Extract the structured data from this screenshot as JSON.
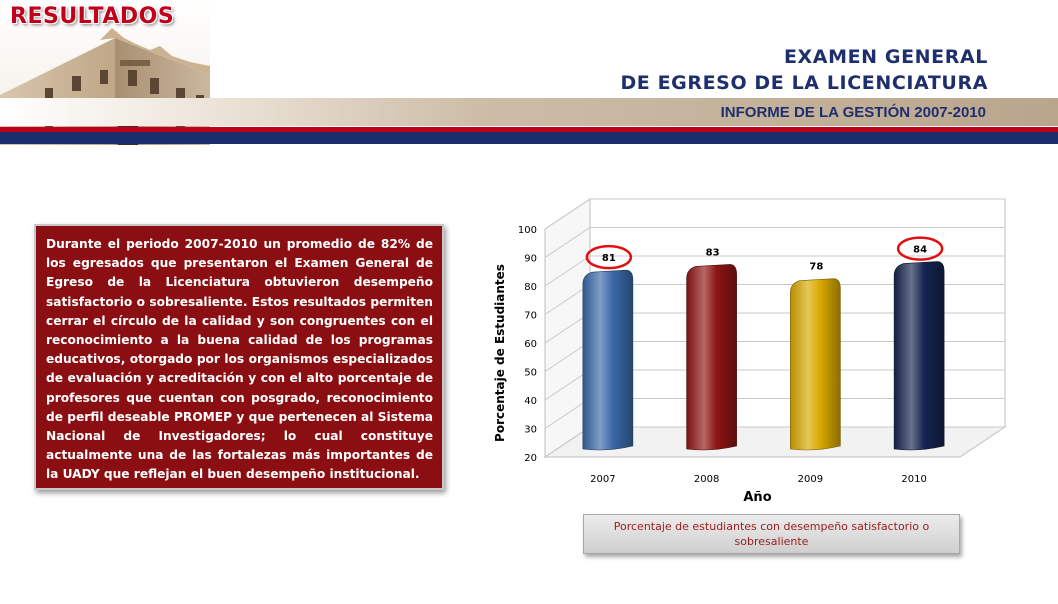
{
  "header": {
    "section_title": "RESULTADOS",
    "title_line1": "EXAMEN GENERAL",
    "title_line2": "DE EGRESO DE LA LICENCIATURA",
    "subtitle": "INFORME DE LA GESTIÓN 2007-2010"
  },
  "description": "Durante el periodo 2007-2010 un promedio de 82% de los egresados que presentaron el Examen General de Egreso de la Licenciatura obtuvieron desempeño satisfactorio o sobresaliente. Estos resultados permiten cerrar el círculo de la calidad y son congruentes con el reconocimiento a la buena calidad de los programas educativos, otorgado por los organismos especializados de evaluación y acreditación y con el alto porcentaje de profesores que cuentan con posgrado, reconocimiento de perfil deseable PROMEP y que pertenecen al Sistema Nacional de Investigadores; lo cual constituye actualmente una de las fortalezas más importantes de la UADY que reflejan el buen desempeño institucional.",
  "caption": "Porcentaje de estudiantes con desempeño satisfactorio o sobresaliente",
  "chart_data": {
    "type": "bar",
    "categories": [
      "2007",
      "2008",
      "2009",
      "2010"
    ],
    "values": [
      81,
      83,
      78,
      84
    ],
    "xlabel": "Año",
    "ylabel": "Porcentaje de Estudiantes",
    "ylim": [
      20,
      100
    ],
    "yticks": [
      20,
      30,
      40,
      50,
      60,
      70,
      80,
      90,
      100
    ],
    "grid": true,
    "colors": [
      "#3a68a8",
      "#8e1414",
      "#d8a800",
      "#16244f"
    ],
    "highlighted": [
      "2007",
      "2010"
    ],
    "highlight_color": "#e01010"
  }
}
